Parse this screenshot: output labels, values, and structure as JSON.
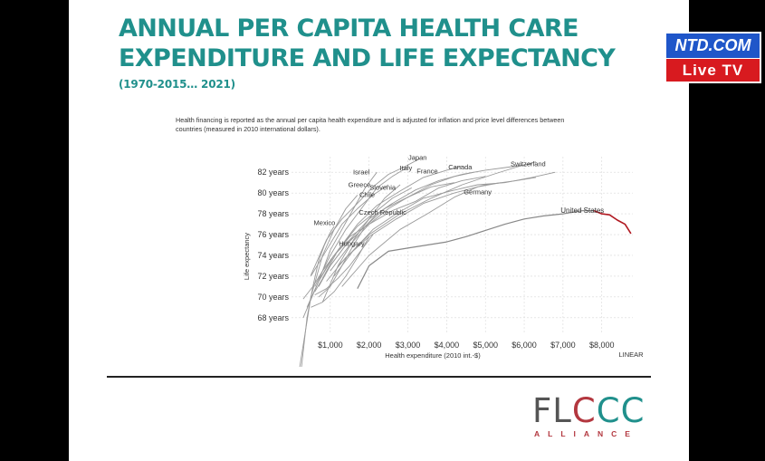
{
  "slide": {
    "title_line1": "ANNUAL PER CAPITA HEALTH CARE",
    "title_line2": "EXPENDITURE AND LIFE EXPECTANCY",
    "subtitle": "(1970-2015… 2021)"
  },
  "chart_data": {
    "type": "line",
    "note": "Health financing is reported as the annual per capita health expenditure and is adjusted for inflation and price level differences between countries (measured in 2010 international dollars).",
    "xlabel": "Health expenditure (2010 int.-$)",
    "ylabel": "Life expectancy",
    "scale_label": "LINEAR",
    "xlim": [
      0,
      8800
    ],
    "ylim": [
      66.5,
      83.5
    ],
    "x_ticks": [
      1000,
      2000,
      3000,
      4000,
      5000,
      6000,
      7000,
      8000
    ],
    "x_tick_labels": [
      "$1,000",
      "$2,000",
      "$3,000",
      "$4,000",
      "$5,000",
      "$6,000",
      "$7,000",
      "$8,000"
    ],
    "y_ticks": [
      68,
      70,
      72,
      74,
      76,
      78,
      80,
      82
    ],
    "y_tick_labels": [
      "68 years",
      "70 years",
      "72 years",
      "74 years",
      "76 years",
      "78 years",
      "80 years",
      "82 years"
    ],
    "series": [
      {
        "name": "Japan",
        "label_at": [
          3250,
          83.2
        ],
        "x": [
          500,
          900,
          1300,
          1700,
          2100,
          2500,
          2900,
          3300
        ],
        "y": [
          72.1,
          75.5,
          77.5,
          79.0,
          80.6,
          81.8,
          82.5,
          83.3
        ]
      },
      {
        "name": "Israel",
        "label_at": [
          1800,
          81.8
        ],
        "x": [
          700,
          1000,
          1300,
          1600,
          1900,
          2200
        ],
        "y": [
          71.5,
          74.5,
          76.5,
          78.5,
          80.5,
          82.0
        ]
      },
      {
        "name": "Italy",
        "label_at": [
          2950,
          82.2
        ],
        "x": [
          600,
          1000,
          1400,
          1800,
          2200,
          2600,
          3000
        ],
        "y": [
          71.0,
          74.0,
          76.5,
          78.5,
          80.5,
          81.6,
          82.5
        ]
      },
      {
        "name": "France",
        "label_at": [
          3500,
          81.9
        ],
        "x": [
          800,
          1200,
          1700,
          2200,
          2800,
          3400,
          4000,
          4400
        ],
        "y": [
          71.8,
          74.5,
          77.0,
          78.8,
          80.2,
          81.5,
          82.2,
          82.6
        ]
      },
      {
        "name": "Canada",
        "label_at": [
          4350,
          82.3
        ],
        "x": [
          1000,
          1500,
          2000,
          2500,
          3000,
          3600,
          4200,
          4700
        ],
        "y": [
          72.5,
          75.0,
          77.0,
          78.5,
          79.6,
          80.8,
          81.6,
          82.0
        ]
      },
      {
        "name": "Switzerland",
        "label_at": [
          6100,
          82.6
        ],
        "x": [
          1200,
          2000,
          2800,
          3600,
          4400,
          5200,
          5800,
          6300
        ],
        "y": [
          73.0,
          76.0,
          78.0,
          79.5,
          80.8,
          81.8,
          82.5,
          83.0
        ]
      },
      {
        "name": "Greece",
        "label_at": [
          1750,
          80.6
        ],
        "x": [
          500,
          900,
          1300,
          1700,
          2100,
          2500
        ],
        "y": [
          72.0,
          74.5,
          77.0,
          78.5,
          79.8,
          80.8
        ]
      },
      {
        "name": "Slovenia",
        "label_at": [
          2350,
          80.3
        ],
        "x": [
          800,
          1200,
          1600,
          2000,
          2400,
          2800
        ],
        "y": [
          69.5,
          73.0,
          75.5,
          77.5,
          79.5,
          80.8
        ]
      },
      {
        "name": "Chile",
        "label_at": [
          1950,
          79.6
        ],
        "x": [
          200,
          500,
          800,
          1100,
          1400,
          1700
        ],
        "y": [
          63.0,
          70.0,
          74.0,
          76.5,
          78.5,
          79.8
        ]
      },
      {
        "name": "Germany",
        "label_at": [
          4800,
          79.9
        ],
        "x": [
          1300,
          2000,
          2800,
          3500,
          4200,
          4800,
          5400
        ],
        "y": [
          71.0,
          74.0,
          76.5,
          78.0,
          79.6,
          80.6,
          81.0
        ]
      },
      {
        "name": "Czech Republic",
        "label_at": [
          2350,
          77.9
        ],
        "x": [
          700,
          1000,
          1300,
          1600,
          1900,
          2200,
          2600
        ],
        "y": [
          70.0,
          71.0,
          73.0,
          75.0,
          76.8,
          78.0,
          79.0
        ]
      },
      {
        "name": "Mexico",
        "label_at": [
          850,
          76.9
        ],
        "x": [
          250,
          400,
          550,
          700,
          850,
          1000,
          1100
        ],
        "y": [
          63.0,
          68.0,
          71.0,
          73.5,
          75.0,
          76.2,
          76.8
        ]
      },
      {
        "name": "Hungary",
        "label_at": [
          1550,
          74.9
        ],
        "x": [
          500,
          800,
          1100,
          1400,
          1700,
          2000
        ],
        "y": [
          69.0,
          69.5,
          70.5,
          72.0,
          73.8,
          75.8
        ]
      },
      {
        "name": "",
        "x": [
          300,
          700,
          1100,
          1500,
          2000,
          2600,
          3200,
          3800,
          4400,
          5000
        ],
        "y": [
          68.0,
          71.5,
          74.0,
          75.8,
          77.0,
          78.3,
          79.2,
          80.5,
          81.2,
          81.6
        ]
      },
      {
        "name": "",
        "x": [
          600,
          1000,
          1500,
          2000,
          2600,
          3200,
          3800,
          4400,
          5000,
          5600,
          6200
        ],
        "y": [
          70.5,
          73.0,
          75.5,
          77.5,
          79.0,
          80.3,
          81.2,
          81.8,
          82.2,
          82.5,
          82.8
        ]
      },
      {
        "name": "",
        "x": [
          1100,
          1600,
          2100,
          2700,
          3400,
          4100,
          4800,
          5500,
          6200,
          6800
        ],
        "y": [
          72.0,
          74.5,
          76.5,
          78.0,
          79.5,
          80.2,
          80.8,
          81.0,
          81.5,
          82.0
        ]
      },
      {
        "name": "",
        "x": [
          700,
          1000,
          1400,
          1900,
          2400,
          3000,
          3600,
          4200
        ],
        "y": [
          71.0,
          73.0,
          75.0,
          76.8,
          78.5,
          79.6,
          80.6,
          81.0
        ]
      },
      {
        "name": "",
        "x": [
          400,
          700,
          1000,
          1300,
          1700,
          2100,
          2600,
          3100
        ],
        "y": [
          69.0,
          71.5,
          73.5,
          75.0,
          76.8,
          78.0,
          79.5,
          80.5
        ]
      },
      {
        "name": "",
        "x": [
          900,
          1400,
          2000,
          2700,
          3400,
          4200,
          5000,
          5800,
          6300
        ],
        "y": [
          71.5,
          73.8,
          75.8,
          77.5,
          79.0,
          80.0,
          80.8,
          81.2,
          81.5
        ]
      },
      {
        "name": "",
        "x": [
          600,
          900,
          1200,
          1500,
          1800,
          2100
        ],
        "y": [
          70.2,
          70.8,
          71.8,
          73.0,
          74.5,
          76.0
        ]
      },
      {
        "name": "",
        "x": [
          300,
          550,
          800,
          1100,
          1400,
          1700
        ],
        "y": [
          69.8,
          71.0,
          72.5,
          74.0,
          75.2,
          76.0
        ]
      }
    ],
    "highlight": {
      "name": "United States",
      "label_at": [
        7500,
        78.1
      ],
      "x": [
        1700,
        2000,
        2500,
        3000,
        3500,
        4000,
        4500,
        5000,
        5500,
        6000,
        6500,
        7000,
        7500,
        7800
      ],
      "y": [
        70.8,
        73.0,
        74.4,
        74.7,
        75.0,
        75.3,
        75.8,
        76.4,
        77.0,
        77.5,
        77.8,
        78.0,
        78.3,
        78.3
      ],
      "decline_x": [
        7800,
        8000,
        8200,
        8400,
        8600,
        8750
      ],
      "decline_y": [
        78.3,
        78.0,
        77.9,
        77.4,
        77.0,
        76.1
      ],
      "line_color": "#888888",
      "decline_color": "#b01820"
    }
  },
  "logo": {
    "main_part1": "FL",
    "main_part2": "C",
    "main_part3": "CC",
    "sub": "ALLIANCE"
  },
  "badge": {
    "top": "NTD.COM",
    "bottom": "Live TV"
  }
}
